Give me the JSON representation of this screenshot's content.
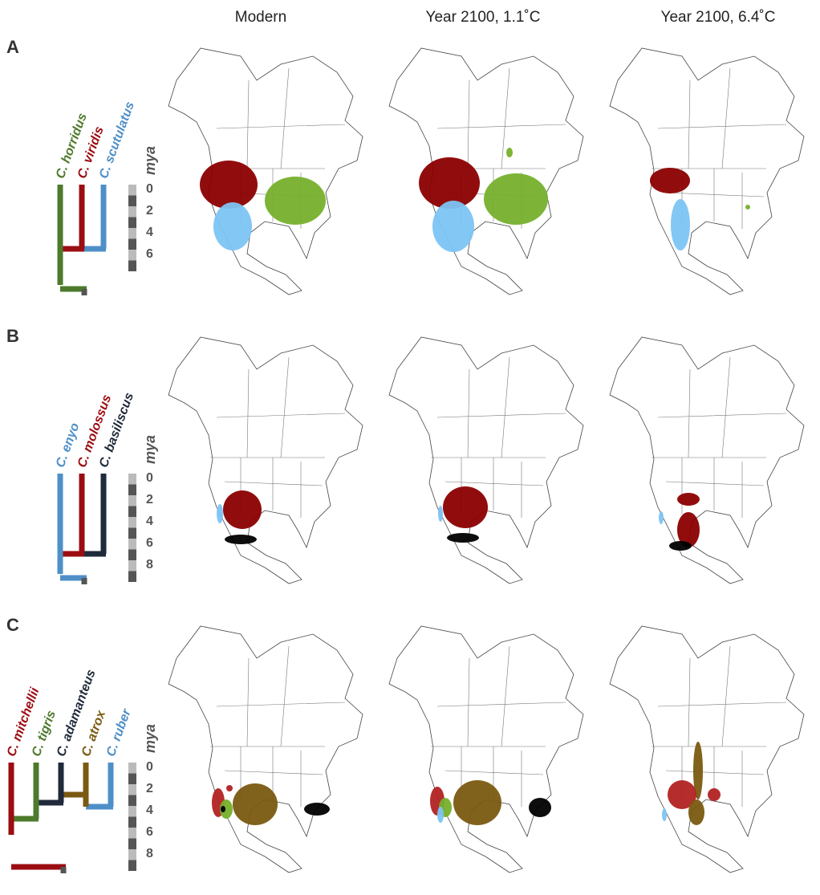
{
  "columns": [
    "Modern",
    "Year 2100, 1.1˚C",
    "Year 2100, 6.4˚C"
  ],
  "panels": [
    {
      "label": "A",
      "axis_label": "mya",
      "ticks": [
        0,
        2,
        4,
        6
      ],
      "species": [
        {
          "name": "C. horridus",
          "color": "#4e7a2c",
          "range_color": "#76b02c"
        },
        {
          "name": "C. viridis",
          "color": "#9b0d12",
          "range_color": "#8b0000"
        },
        {
          "name": "C. scutulatus",
          "color": "#4f8fc8",
          "range_color": "#7cc4f4"
        }
      ]
    },
    {
      "label": "B",
      "axis_label": "mya",
      "ticks": [
        0,
        2,
        4,
        6,
        8
      ],
      "species": [
        {
          "name": "C. enyo",
          "color": "#4f8fc8",
          "range_color": "#7cc4f4"
        },
        {
          "name": "C. molossus",
          "color": "#9b0d12",
          "range_color": "#8b0000"
        },
        {
          "name": "C. basiliscus",
          "color": "#1f2a3a",
          "range_color": "#000000"
        }
      ]
    },
    {
      "label": "C",
      "axis_label": "mya",
      "ticks": [
        0,
        2,
        4,
        6,
        8
      ],
      "species": [
        {
          "name": "C. mitchellii",
          "color": "#9b0d12",
          "range_color": "#b22222"
        },
        {
          "name": "C. tigris",
          "color": "#4e7a2c",
          "range_color": "#76b02c"
        },
        {
          "name": "C. adamanteus",
          "color": "#1f2a3a",
          "range_color": "#000000"
        },
        {
          "name": "C. atrox",
          "color": "#7a5a10",
          "range_color": "#7a5a10"
        },
        {
          "name": "C. ruber",
          "color": "#4f8fc8",
          "range_color": "#7cc4f4"
        }
      ]
    }
  ]
}
